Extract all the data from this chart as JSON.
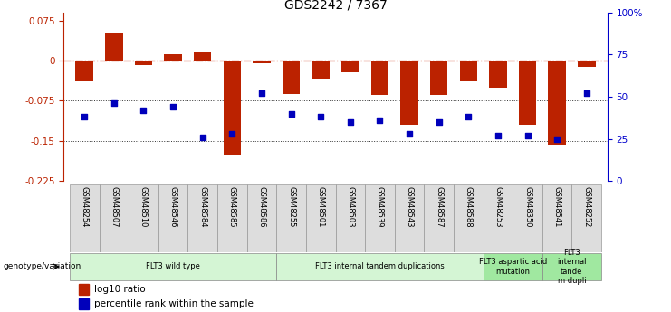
{
  "title": "GDS2242 / 7367",
  "samples": [
    "GSM48254",
    "GSM48507",
    "GSM48510",
    "GSM48546",
    "GSM48584",
    "GSM48585",
    "GSM48586",
    "GSM48255",
    "GSM48501",
    "GSM48503",
    "GSM48539",
    "GSM48543",
    "GSM48587",
    "GSM48588",
    "GSM48253",
    "GSM48350",
    "GSM48541",
    "GSM48252"
  ],
  "log10_ratio": [
    -0.038,
    0.052,
    -0.008,
    0.012,
    0.015,
    -0.175,
    -0.005,
    -0.063,
    -0.033,
    -0.022,
    -0.065,
    -0.12,
    -0.065,
    -0.038,
    -0.05,
    -0.12,
    -0.158,
    -0.012
  ],
  "percentile_rank": [
    38,
    46,
    42,
    44,
    26,
    28,
    52,
    40,
    38,
    35,
    36,
    28,
    35,
    38,
    27,
    27,
    25,
    52
  ],
  "groups": [
    {
      "label": "FLT3 wild type",
      "start": 0,
      "end": 7,
      "color": "#d4f5d4"
    },
    {
      "label": "FLT3 internal tandem duplications",
      "start": 7,
      "end": 14,
      "color": "#d4f5d4"
    },
    {
      "label": "FLT3 aspartic acid\nmutation",
      "start": 14,
      "end": 16,
      "color": "#a0e8a0"
    },
    {
      "label": "FLT3\ninternal\ntande\nm dupli",
      "start": 16,
      "end": 18,
      "color": "#a0e8a0"
    }
  ],
  "ylim_left": [
    -0.225,
    0.09
  ],
  "yticks_left": [
    0.075,
    0,
    -0.075,
    -0.15,
    -0.225
  ],
  "yticks_right": [
    100,
    75,
    50,
    25,
    0
  ],
  "bar_color": "#bb2200",
  "dot_color": "#0000bb",
  "zero_line_color": "#cc2200",
  "dotted_line_color": "#333333",
  "right_axis_color": "#0000cc",
  "background_color": "#ffffff"
}
